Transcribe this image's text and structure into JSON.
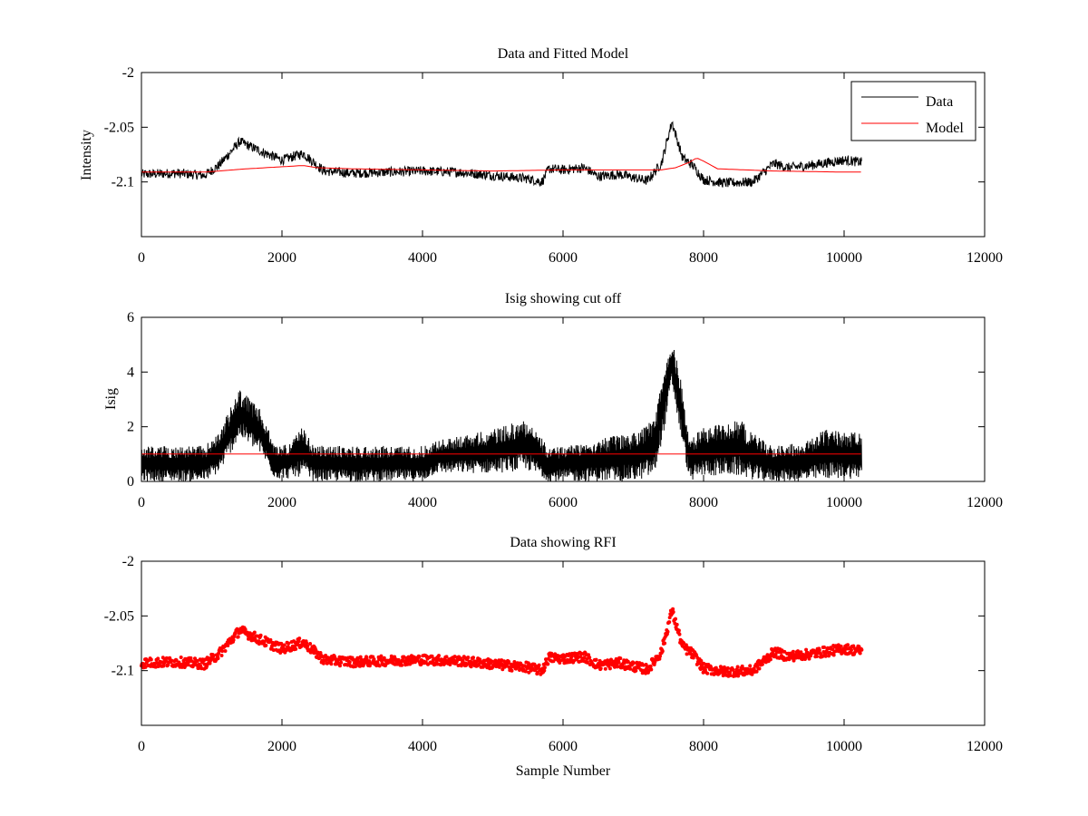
{
  "chart_data": [
    {
      "type": "line",
      "title": "Data and Fitted Model",
      "xlabel": "",
      "ylabel": "Intensity",
      "xlim": [
        0,
        12000
      ],
      "ylim": [
        -2.15,
        -2.0
      ],
      "xticks": [
        0,
        2000,
        4000,
        6000,
        8000,
        10000,
        12000
      ],
      "xtick_labels": [
        "0",
        "2000",
        "4000",
        "6000",
        "8000",
        "10000",
        "12000"
      ],
      "yticks": [
        -2.0,
        -2.05,
        -2.1
      ],
      "ytick_labels": [
        "-2",
        "-2.05",
        "-2.1"
      ],
      "grid": false,
      "legend_position": "top-right",
      "legend": [
        {
          "label": "Data",
          "color": "#000000"
        },
        {
          "label": "Model",
          "color": "#ff0000"
        }
      ],
      "series": [
        {
          "name": "Data",
          "color": "#000000",
          "style": "noisy-line",
          "noise": 0.0045,
          "x": [
            0,
            500,
            900,
            1100,
            1400,
            1700,
            2000,
            2300,
            2600,
            3000,
            3500,
            4000,
            4500,
            5000,
            5500,
            5700,
            5800,
            6000,
            6300,
            6500,
            6800,
            7200,
            7400,
            7550,
            7700,
            7850,
            8000,
            8300,
            8700,
            9000,
            9200,
            9500,
            10000,
            10250
          ],
          "values": [
            -2.093,
            -2.092,
            -2.094,
            -2.085,
            -2.063,
            -2.072,
            -2.08,
            -2.074,
            -2.09,
            -2.092,
            -2.091,
            -2.09,
            -2.091,
            -2.094,
            -2.097,
            -2.1,
            -2.088,
            -2.089,
            -2.087,
            -2.095,
            -2.093,
            -2.099,
            -2.083,
            -2.045,
            -2.078,
            -2.085,
            -2.098,
            -2.101,
            -2.1,
            -2.083,
            -2.087,
            -2.085,
            -2.08,
            -2.082
          ]
        },
        {
          "name": "Model",
          "color": "#ff0000",
          "style": "line",
          "x": [
            0,
            900,
            1500,
            2300,
            2500,
            3000,
            4000,
            5000,
            6000,
            7000,
            7400,
            7600,
            7800,
            7900,
            8000,
            8200,
            8600,
            9000,
            10000,
            10250
          ],
          "values": [
            -2.091,
            -2.091,
            -2.088,
            -2.085,
            -2.087,
            -2.088,
            -2.089,
            -2.09,
            -2.089,
            -2.089,
            -2.089,
            -2.087,
            -2.082,
            -2.078,
            -2.081,
            -2.088,
            -2.089,
            -2.09,
            -2.091,
            -2.091
          ]
        }
      ]
    },
    {
      "type": "line",
      "title": "Isig showing cut off",
      "xlabel": "",
      "ylabel": "Isig",
      "xlim": [
        0,
        12000
      ],
      "ylim": [
        0,
        6
      ],
      "xticks": [
        0,
        2000,
        4000,
        6000,
        8000,
        10000,
        12000
      ],
      "xtick_labels": [
        "0",
        "2000",
        "4000",
        "6000",
        "8000",
        "10000",
        "12000"
      ],
      "yticks": [
        0,
        2,
        4,
        6
      ],
      "ytick_labels": [
        "0",
        "2",
        "4",
        "6"
      ],
      "grid": false,
      "series": [
        {
          "name": "Isig",
          "color": "#000000",
          "style": "noisy-band",
          "x": [
            0,
            900,
            1100,
            1400,
            1700,
            1900,
            2100,
            2300,
            2450,
            3000,
            4000,
            4200,
            5000,
            5500,
            5800,
            6000,
            7000,
            7300,
            7450,
            7550,
            7650,
            7800,
            8000,
            8500,
            8800,
            9000,
            9500,
            9700,
            10250
          ],
          "lower": [
            0.0,
            0.0,
            0.3,
            1.6,
            1.0,
            0.1,
            0.1,
            0.2,
            0.0,
            0.0,
            0.0,
            0.3,
            0.3,
            0.4,
            0.0,
            0.0,
            0.0,
            0.2,
            2.0,
            3.5,
            2.0,
            0.0,
            0.2,
            0.2,
            0.0,
            0.0,
            0.0,
            0.1,
            0.1
          ],
          "upper": [
            1.3,
            1.3,
            1.8,
            3.4,
            2.6,
            1.3,
            1.4,
            2.0,
            1.3,
            1.3,
            1.3,
            1.5,
            1.9,
            2.3,
            1.2,
            1.3,
            1.8,
            2.3,
            4.2,
            5.1,
            4.2,
            1.5,
            2.0,
            2.3,
            1.6,
            1.3,
            1.5,
            1.9,
            1.8
          ]
        },
        {
          "name": "Cut off",
          "color": "#ff0000",
          "style": "line",
          "x": [
            0,
            10250
          ],
          "values": [
            1,
            1
          ]
        }
      ]
    },
    {
      "type": "scatter",
      "title": "Data showing RFI",
      "xlabel": "Sample Number",
      "ylabel": "",
      "xlim": [
        0,
        12000
      ],
      "ylim": [
        -2.15,
        -2.0
      ],
      "xticks": [
        0,
        2000,
        4000,
        6000,
        8000,
        10000,
        12000
      ],
      "xtick_labels": [
        "0",
        "2000",
        "4000",
        "6000",
        "8000",
        "10000",
        "12000"
      ],
      "yticks": [
        -2.0,
        -2.05,
        -2.1
      ],
      "ytick_labels": [
        "-2",
        "-2.05",
        "-2.1"
      ],
      "grid": false,
      "series": [
        {
          "name": "Data",
          "color": "#ff0000",
          "style": "noisy-markers",
          "noise": 0.0045,
          "x": [
            0,
            500,
            900,
            1100,
            1400,
            1700,
            2000,
            2300,
            2600,
            3000,
            3500,
            4000,
            4500,
            5000,
            5500,
            5700,
            5800,
            6000,
            6300,
            6500,
            6800,
            7200,
            7400,
            7550,
            7700,
            7850,
            8000,
            8300,
            8700,
            9000,
            9200,
            9500,
            10000,
            10250
          ],
          "values": [
            -2.093,
            -2.092,
            -2.094,
            -2.085,
            -2.063,
            -2.072,
            -2.08,
            -2.074,
            -2.09,
            -2.092,
            -2.091,
            -2.09,
            -2.091,
            -2.094,
            -2.097,
            -2.1,
            -2.088,
            -2.089,
            -2.087,
            -2.095,
            -2.093,
            -2.099,
            -2.083,
            -2.045,
            -2.078,
            -2.085,
            -2.098,
            -2.101,
            -2.1,
            -2.083,
            -2.087,
            -2.085,
            -2.08,
            -2.082
          ]
        }
      ]
    }
  ]
}
